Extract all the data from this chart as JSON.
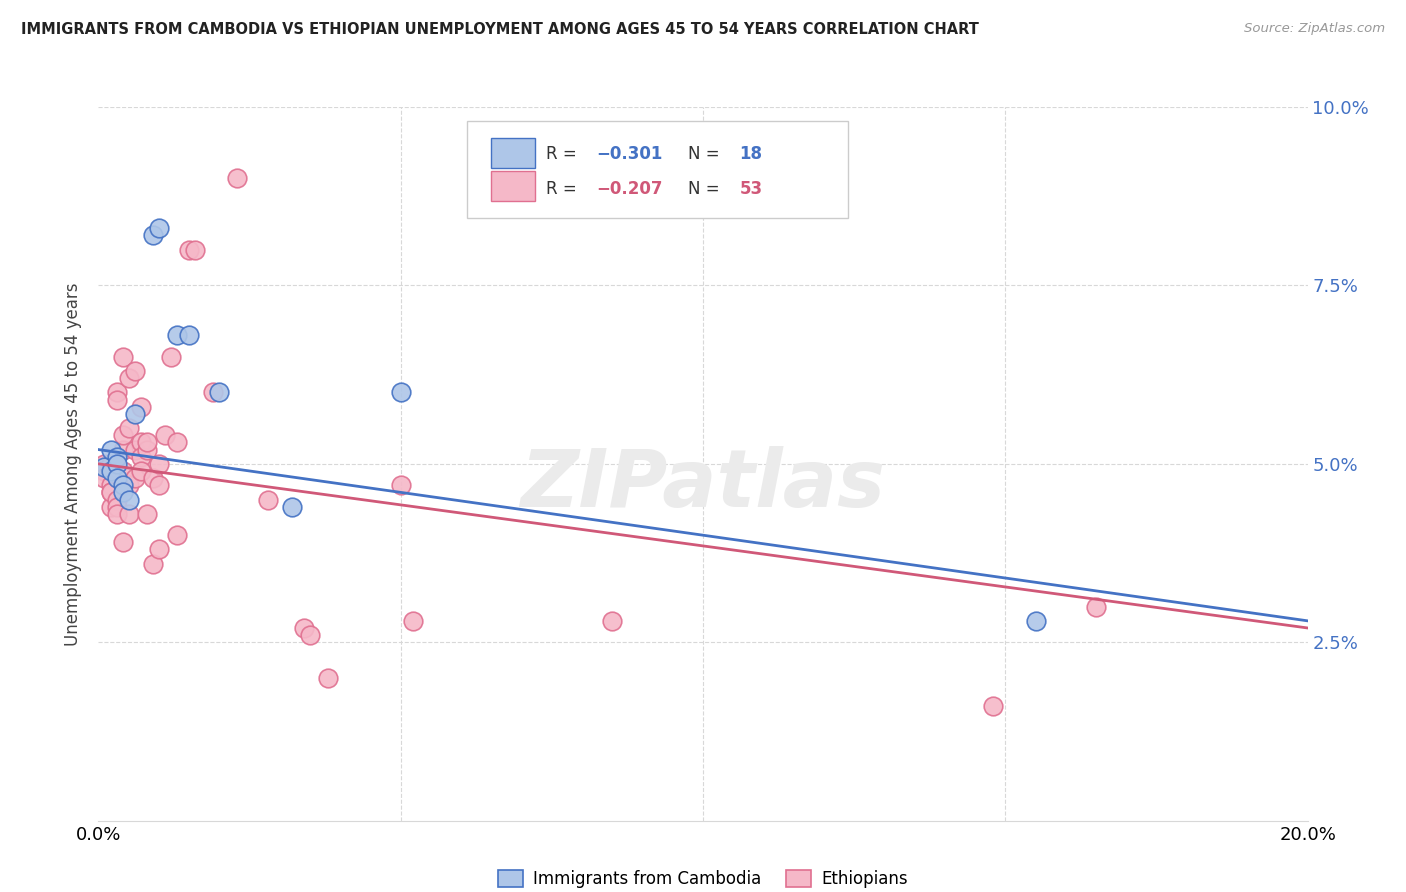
{
  "title": "IMMIGRANTS FROM CAMBODIA VS ETHIOPIAN UNEMPLOYMENT AMONG AGES 45 TO 54 YEARS CORRELATION CHART",
  "source": "Source: ZipAtlas.com",
  "ylabel": "Unemployment Among Ages 45 to 54 years",
  "xmin": 0.0,
  "xmax": 0.2,
  "ymin": 0.0,
  "ymax": 0.1,
  "yticks": [
    0.025,
    0.05,
    0.075,
    0.1
  ],
  "ytick_labels": [
    "2.5%",
    "5.0%",
    "7.5%",
    "10.0%"
  ],
  "xticks": [
    0.0,
    0.05,
    0.1,
    0.15,
    0.2
  ],
  "cambodia_color": "#aec6e8",
  "ethiopian_color": "#f5b8c8",
  "cambodia_edge_color": "#4472c4",
  "ethiopian_edge_color": "#e07090",
  "cambodia_line_color": "#4472c4",
  "ethiopian_line_color": "#d05878",
  "watermark": "ZIPatlas",
  "cambodia_line_x": [
    0.0,
    0.2
  ],
  "cambodia_line_y": [
    0.052,
    0.028
  ],
  "ethiopian_line_x": [
    0.0,
    0.2
  ],
  "ethiopian_line_y": [
    0.05,
    0.027
  ],
  "cambodia_points": [
    [
      0.001,
      0.0495
    ],
    [
      0.002,
      0.049
    ],
    [
      0.002,
      0.052
    ],
    [
      0.003,
      0.051
    ],
    [
      0.003,
      0.05
    ],
    [
      0.003,
      0.048
    ],
    [
      0.004,
      0.047
    ],
    [
      0.004,
      0.046
    ],
    [
      0.005,
      0.045
    ],
    [
      0.006,
      0.057
    ],
    [
      0.009,
      0.082
    ],
    [
      0.01,
      0.083
    ],
    [
      0.013,
      0.068
    ],
    [
      0.015,
      0.068
    ],
    [
      0.02,
      0.06
    ],
    [
      0.032,
      0.044
    ],
    [
      0.05,
      0.06
    ],
    [
      0.155,
      0.028
    ]
  ],
  "ethiopian_points": [
    [
      0.001,
      0.05
    ],
    [
      0.001,
      0.049
    ],
    [
      0.001,
      0.048
    ],
    [
      0.002,
      0.047
    ],
    [
      0.002,
      0.046
    ],
    [
      0.002,
      0.044
    ],
    [
      0.002,
      0.05
    ],
    [
      0.002,
      0.046
    ],
    [
      0.003,
      0.045
    ],
    [
      0.003,
      0.044
    ],
    [
      0.003,
      0.043
    ],
    [
      0.003,
      0.06
    ],
    [
      0.003,
      0.059
    ],
    [
      0.004,
      0.052
    ],
    [
      0.004,
      0.049
    ],
    [
      0.004,
      0.039
    ],
    [
      0.004,
      0.065
    ],
    [
      0.004,
      0.054
    ],
    [
      0.005,
      0.047
    ],
    [
      0.005,
      0.043
    ],
    [
      0.005,
      0.062
    ],
    [
      0.005,
      0.055
    ],
    [
      0.006,
      0.052
    ],
    [
      0.006,
      0.048
    ],
    [
      0.006,
      0.063
    ],
    [
      0.007,
      0.053
    ],
    [
      0.007,
      0.051
    ],
    [
      0.007,
      0.049
    ],
    [
      0.007,
      0.058
    ],
    [
      0.008,
      0.052
    ],
    [
      0.008,
      0.043
    ],
    [
      0.008,
      0.053
    ],
    [
      0.009,
      0.048
    ],
    [
      0.009,
      0.036
    ],
    [
      0.01,
      0.05
    ],
    [
      0.01,
      0.047
    ],
    [
      0.01,
      0.038
    ],
    [
      0.011,
      0.054
    ],
    [
      0.012,
      0.065
    ],
    [
      0.013,
      0.053
    ],
    [
      0.013,
      0.04
    ],
    [
      0.015,
      0.08
    ],
    [
      0.016,
      0.08
    ],
    [
      0.019,
      0.06
    ],
    [
      0.023,
      0.09
    ],
    [
      0.028,
      0.045
    ],
    [
      0.034,
      0.027
    ],
    [
      0.035,
      0.026
    ],
    [
      0.038,
      0.02
    ],
    [
      0.05,
      0.047
    ],
    [
      0.052,
      0.028
    ],
    [
      0.085,
      0.028
    ],
    [
      0.148,
      0.016
    ],
    [
      0.165,
      0.03
    ]
  ],
  "background_color": "#ffffff",
  "grid_color": "#d8d8d8"
}
